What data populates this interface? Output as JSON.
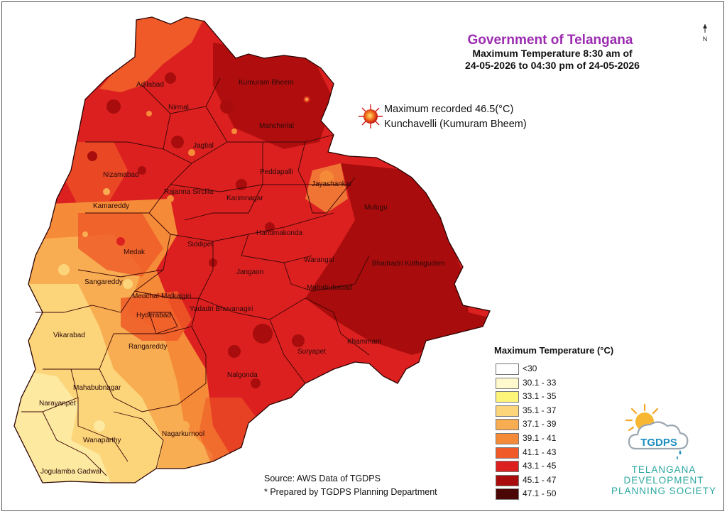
{
  "title": {
    "line1": "Government of Telangana",
    "line2": "Maximum Temperature 8:30 am of",
    "line3": "24-05-2026 to 04:30 pm of 24-05-2026"
  },
  "max_recorded": {
    "line1": "Maximum recorded 46.5(°C)",
    "line2": "Kunchavelli (Kumuram Bheem)"
  },
  "north_arrow": "N",
  "districts": [
    {
      "name": "Adilabad"
    },
    {
      "name": "Kumuram Bheem"
    },
    {
      "name": "Nirmal"
    },
    {
      "name": "Mancherial"
    },
    {
      "name": "Jagtial"
    },
    {
      "name": "Nizamabad"
    },
    {
      "name": "Peddapalli"
    },
    {
      "name": "Jayashankar"
    },
    {
      "name": "Rajanna Sircilla"
    },
    {
      "name": "Kamareddy"
    },
    {
      "name": "Karimnagar"
    },
    {
      "name": "Mulugu"
    },
    {
      "name": "Hanumakonda"
    },
    {
      "name": "Siddipet"
    },
    {
      "name": "Medak"
    },
    {
      "name": "Warangal"
    },
    {
      "name": "Bhadradri Kothagudem"
    },
    {
      "name": "Jangaon"
    },
    {
      "name": "Sangareddy"
    },
    {
      "name": "Mahabubabad"
    },
    {
      "name": "Medchal-Malkajgiri"
    },
    {
      "name": "Yadadri Bhuvanagiri"
    },
    {
      "name": "Hyderabad"
    },
    {
      "name": "Vikarabad"
    },
    {
      "name": "Khammam"
    },
    {
      "name": "Rangareddy"
    },
    {
      "name": "Suryapet"
    },
    {
      "name": "Nalgonda"
    },
    {
      "name": "Mahabubnagar"
    },
    {
      "name": "Narayanpet"
    },
    {
      "name": "Nagarkurnool"
    },
    {
      "name": "Wanaparthy"
    },
    {
      "name": "Jogulamba Gadwal"
    }
  ],
  "legend": {
    "title": "Maximum Temperature (°C)",
    "items": [
      {
        "label": "<30",
        "color": "#ffffff"
      },
      {
        "label": "30.1 - 33",
        "color": "#fffacd"
      },
      {
        "label": "33.1 - 35",
        "color": "#fdf57a"
      },
      {
        "label": "35.1 - 37",
        "color": "#fcd57a"
      },
      {
        "label": "37.1 - 39",
        "color": "#f8ad52"
      },
      {
        "label": "39.1 - 41",
        "color": "#f58a38"
      },
      {
        "label": "41.1 - 43",
        "color": "#ef5a28"
      },
      {
        "label": "43.1 - 45",
        "color": "#dc2020"
      },
      {
        "label": "45.1 - 47",
        "color": "#a80c0c"
      },
      {
        "label": "47.1 - 50",
        "color": "#4b0606"
      }
    ]
  },
  "source": {
    "line1": "Source: AWS Data of TGDPS",
    "line2": "* Prepared by TGDPS Planning Department"
  },
  "logo": {
    "abbr": "TGDPS",
    "name_lines": [
      "TELANGANA",
      "DEVELOPMENT",
      "PLANNING SOCIETY"
    ]
  }
}
